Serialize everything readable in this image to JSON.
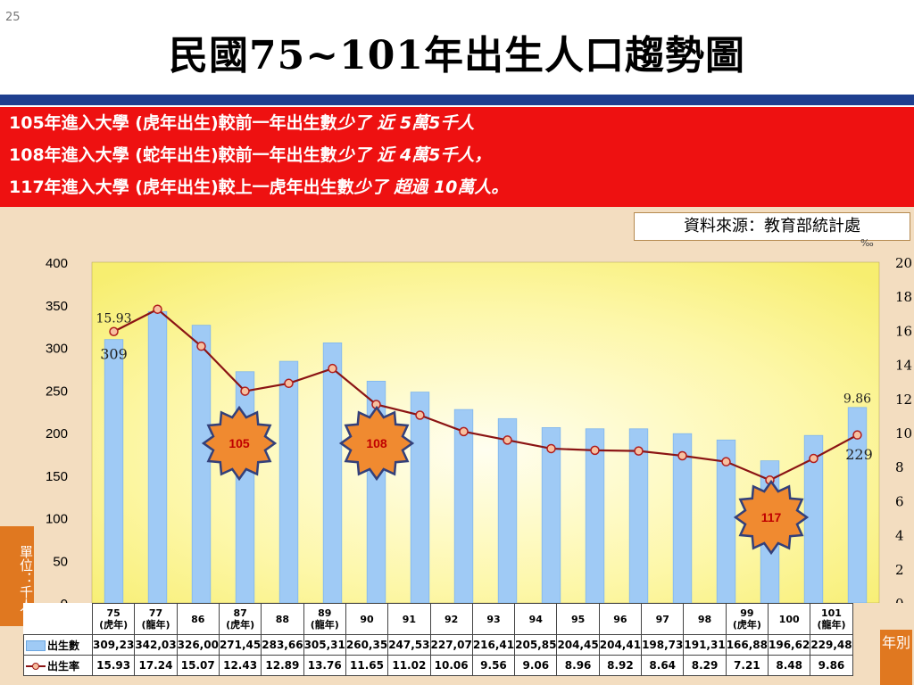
{
  "slide_number": "25",
  "title": "民國75~101年出生人口趨勢圖",
  "banner": [
    {
      "lead": "105年進入大學 (虎年出生)較前一年出生數",
      "hl": "少了 近 5萬5千人"
    },
    {
      "lead": "108年進入大學 (蛇年出生)較前一年出生數",
      "hl": "少了 近 4萬5千人，"
    },
    {
      "lead": "117年進入大學 (虎年出生)較上一虎年出生數",
      "hl": "少了 超過 10萬人。"
    }
  ],
  "source": "資料來源：教育部統計處",
  "unit_label": "單位：千人",
  "year_label": "年別",
  "callouts": [
    "105",
    "108",
    "117"
  ],
  "colors": {
    "bar": "#9fcaf5",
    "bar_edge": "#7fb6ec",
    "line": "#8b1414",
    "marker": "#f7c0a0",
    "star": "#f08a30",
    "banner": "#ee1111"
  },
  "chart_data": {
    "type": "bar",
    "categories": [
      "75 (虎年)",
      "77 (龍年)",
      "86",
      "87 (虎年)",
      "88",
      "89 (龍年)",
      "90",
      "91",
      "92",
      "93",
      "94",
      "95",
      "96",
      "97",
      "98",
      "99 (虎年)",
      "100",
      "101 (龍年)"
    ],
    "category_lines": [
      [
        "75",
        "(虎年)"
      ],
      [
        "77",
        "(龍年)"
      ],
      [
        "86"
      ],
      [
        "87",
        "(虎年)"
      ],
      [
        "88"
      ],
      [
        "89",
        "(龍年)"
      ],
      [
        "90"
      ],
      [
        "91"
      ],
      [
        "92"
      ],
      [
        "93"
      ],
      [
        "94"
      ],
      [
        "95"
      ],
      [
        "96"
      ],
      [
        "97"
      ],
      [
        "98"
      ],
      [
        "99",
        "(虎年)"
      ],
      [
        "100"
      ],
      [
        "101",
        "(龍年)"
      ]
    ],
    "series": [
      {
        "name": "出生數",
        "type": "bar",
        "axis": "left",
        "values": [
          309.23,
          342.03,
          326.0,
          271.45,
          283.66,
          305.31,
          260.35,
          247.53,
          227.07,
          216.41,
          205.85,
          204.45,
          204.41,
          198.73,
          191.31,
          166.88,
          196.62,
          229.48
        ],
        "table_labels": [
          "309,23",
          "342,03",
          "326,00",
          "271,45",
          "283,66",
          "305,31",
          "260,35",
          "247,53",
          "227,07",
          "216,41",
          "205,85",
          "204,45",
          "204,41",
          "198,73",
          "191,31",
          "166,88",
          "196,62",
          "229,48"
        ]
      },
      {
        "name": "出生率",
        "type": "line",
        "axis": "right",
        "values": [
          15.93,
          17.24,
          15.07,
          12.43,
          12.89,
          13.76,
          11.65,
          11.02,
          10.06,
          9.56,
          9.06,
          8.96,
          8.92,
          8.64,
          8.29,
          7.21,
          8.48,
          9.86
        ],
        "table_labels": [
          "15.93",
          "17.24",
          "15.07",
          "12.43",
          "12.89",
          "13.76",
          "11.65",
          "11.02",
          "10.06",
          "9.56",
          "9.06",
          "8.96",
          "8.92",
          "8.64",
          "8.29",
          "7.21",
          "8.48",
          "9.86"
        ]
      }
    ],
    "ylim": [
      0,
      400
    ],
    "yticks": [
      "0",
      "50",
      "100",
      "150",
      "200",
      "250",
      "300",
      "350",
      "400"
    ],
    "y2lim": [
      0,
      20
    ],
    "y2ticks": [
      "0",
      "2",
      "4",
      "6",
      "8",
      "10",
      "12",
      "14",
      "16",
      "18",
      "20"
    ],
    "y2unit": "‰",
    "data_labels": [
      {
        "series": 0,
        "index": 0,
        "text": "309"
      },
      {
        "series": 1,
        "index": 0,
        "text": "15.93"
      },
      {
        "series": 0,
        "index": 17,
        "text": "229"
      },
      {
        "series": 1,
        "index": 17,
        "text": "9.86"
      }
    ],
    "grid": false,
    "legend": "bottom-table"
  }
}
